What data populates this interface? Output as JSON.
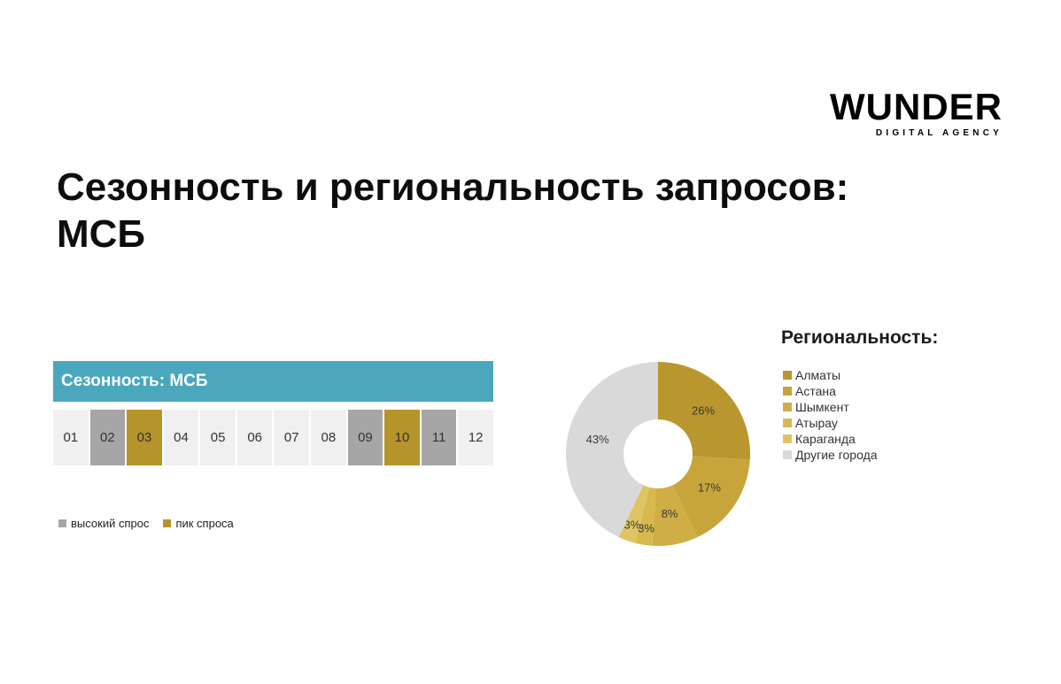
{
  "logo": {
    "brand": "WUNDER",
    "tagline": "DIGITAL AGENCY"
  },
  "title_line1": "Сезонность и региональность запросов:",
  "title_line2": "МСБ",
  "seasonality": {
    "header": "Сезонность: МСБ",
    "months": [
      {
        "label": "01",
        "state": "normal"
      },
      {
        "label": "02",
        "state": "high"
      },
      {
        "label": "03",
        "state": "peak"
      },
      {
        "label": "04",
        "state": "normal"
      },
      {
        "label": "05",
        "state": "normal"
      },
      {
        "label": "06",
        "state": "normal"
      },
      {
        "label": "07",
        "state": "normal"
      },
      {
        "label": "08",
        "state": "normal"
      },
      {
        "label": "09",
        "state": "high"
      },
      {
        "label": "10",
        "state": "peak"
      },
      {
        "label": "11",
        "state": "high"
      },
      {
        "label": "12",
        "state": "normal"
      }
    ],
    "legend": [
      {
        "label": "высокий спрос",
        "color": "#a6a6a6"
      },
      {
        "label": "пик спроса",
        "color": "#b5942c"
      }
    ],
    "colors": {
      "header_bg": "#4aa7bc",
      "normal_cell": "#f0f0f0",
      "high_cell": "#a6a6a6",
      "peak_cell": "#b5942c"
    }
  },
  "regionality": {
    "title": "Региональность:"
  },
  "chart_data": {
    "type": "pie",
    "donut": true,
    "title": "Региональность:",
    "labels": [
      "Алматы",
      "Астана",
      "Шымкент",
      "Атырау",
      "Караганда",
      "Другие города"
    ],
    "values": [
      26,
      17,
      8,
      3,
      3,
      43
    ],
    "value_labels": [
      "26%",
      "17%",
      "8%",
      "3%",
      "3%",
      "43%"
    ],
    "colors": [
      "#b9962e",
      "#c7a53a",
      "#cfae45",
      "#d7b950",
      "#dfc463",
      "#d9d9d9"
    ],
    "start_angle_deg": 0,
    "direction": "clockwise",
    "legend_position": "right"
  }
}
